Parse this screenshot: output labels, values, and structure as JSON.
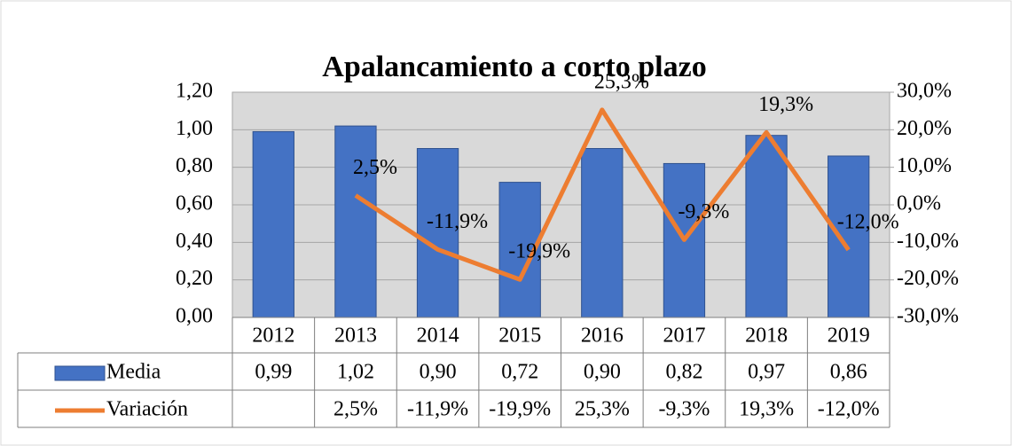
{
  "chart_data": {
    "type": "bar",
    "title": "Apalancamiento a corto plazo",
    "categories": [
      "2012",
      "2013",
      "2014",
      "2015",
      "2016",
      "2017",
      "2018",
      "2019"
    ],
    "series": [
      {
        "name": "Media",
        "color": "#4472c4",
        "type": "bar",
        "values": [
          0.99,
          1.02,
          0.9,
          0.72,
          0.9,
          0.82,
          0.97,
          0.86
        ],
        "value_labels": [
          "0,99",
          "1,02",
          "0,90",
          "0,72",
          "0,90",
          "0,82",
          "0,97",
          "0,86"
        ]
      },
      {
        "name": "Variación",
        "color": "#ed7d31",
        "type": "line",
        "axis": "y2",
        "values": [
          null,
          2.5,
          -11.9,
          -19.9,
          25.3,
          -9.3,
          19.3,
          -12.0
        ],
        "value_labels": [
          null,
          "2,5%",
          "-11,9%",
          "-19,9%",
          "25,3%",
          "-9,3%",
          "19,3%",
          "-12,0%"
        ]
      }
    ],
    "ylim": [
      0,
      1.2
    ],
    "yticks": [
      {
        "value": 0,
        "label": "0,00"
      },
      {
        "value": 0.2,
        "label": "0,20"
      },
      {
        "value": 0.4,
        "label": "0,40"
      },
      {
        "value": 0.6,
        "label": "0,60"
      },
      {
        "value": 0.8,
        "label": "0,80"
      },
      {
        "value": 1,
        "label": "1,00"
      },
      {
        "value": 1.2,
        "label": "1,20"
      }
    ],
    "y2lim": [
      -30,
      30
    ],
    "y2ticks": [
      {
        "value": -30,
        "label": "-30,0%"
      },
      {
        "value": -20,
        "label": "-20,0%"
      },
      {
        "value": -10,
        "label": "-10,0%"
      },
      {
        "value": 0,
        "label": "0,0%"
      },
      {
        "value": 10,
        "label": "10,0%"
      },
      {
        "value": 20,
        "label": "20,0%"
      },
      {
        "value": 30,
        "label": "30,0%"
      }
    ],
    "grid": true,
    "data_table": true
  }
}
